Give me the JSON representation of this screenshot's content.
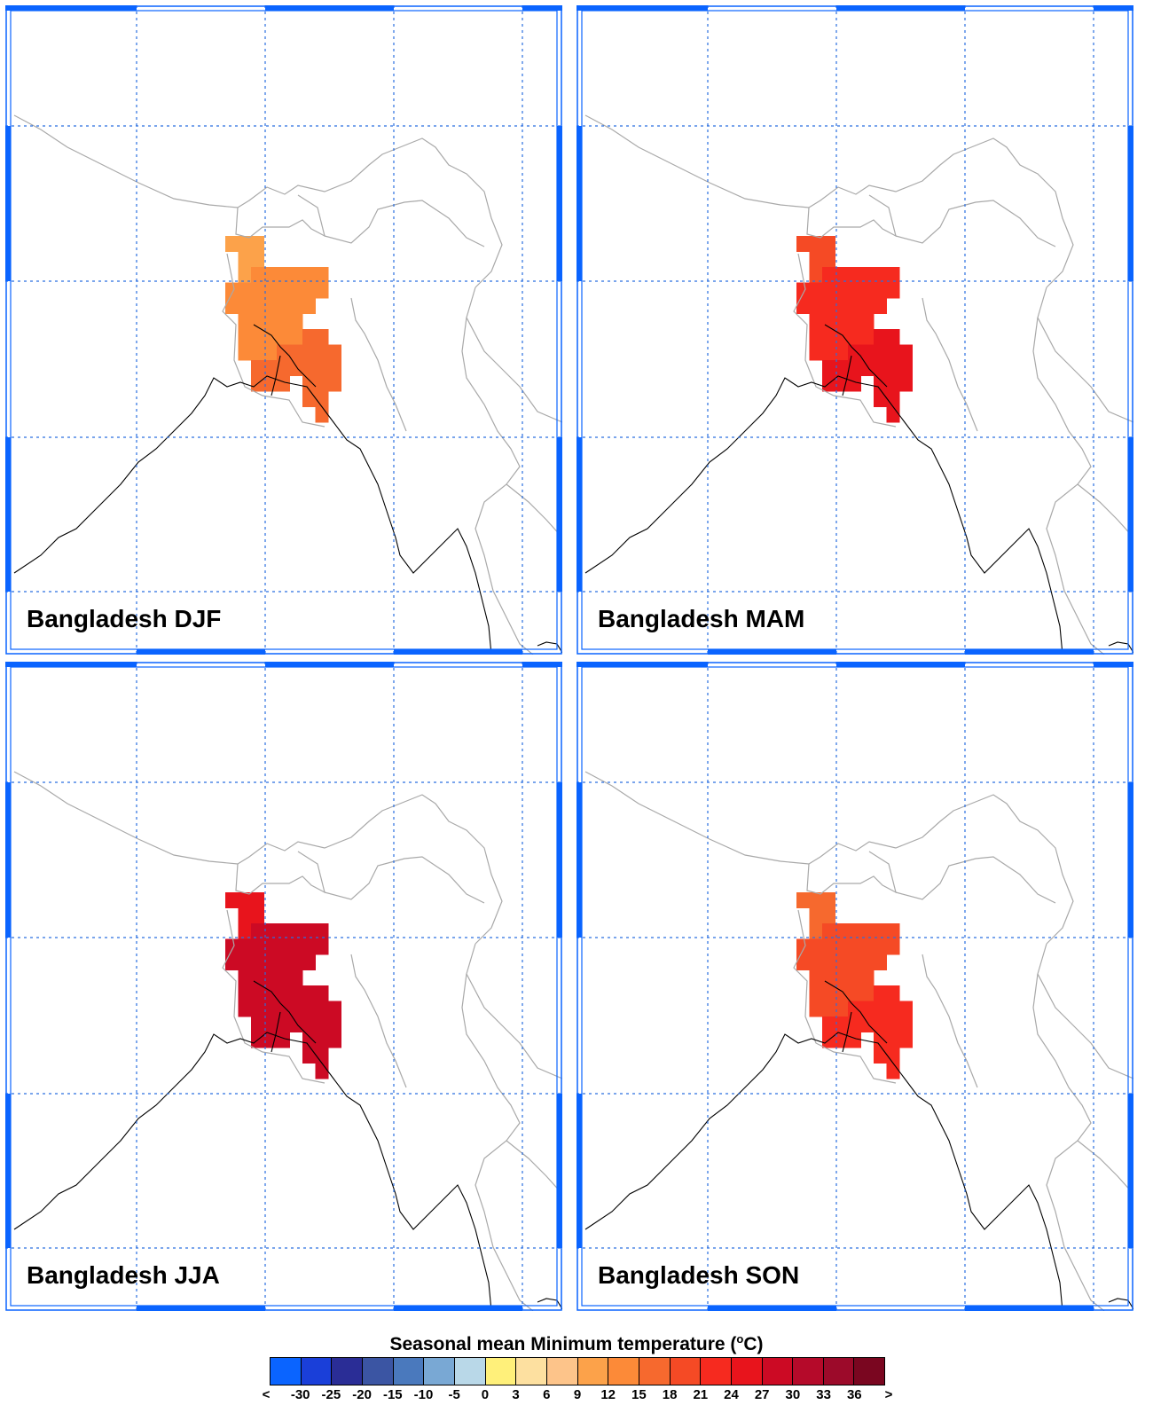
{
  "panels": [
    {
      "title": "Bangladesh DJF",
      "fill_values": [
        9,
        12,
        15
      ]
    },
    {
      "title": "Bangladesh MAM",
      "fill_values": [
        18,
        21,
        24
      ]
    },
    {
      "title": "Bangladesh JJA",
      "fill_values": [
        24,
        27
      ]
    },
    {
      "title": "Bangladesh SON",
      "fill_values": [
        15,
        18,
        21
      ]
    }
  ],
  "legend": {
    "title": "Seasonal mean Minimum temperature (",
    "unit_sup": "o",
    "unit_tail": "C)",
    "ticks": [
      "<",
      "-30",
      "-25",
      "-20",
      "-15",
      "-10",
      "-5",
      "0",
      "3",
      "6",
      "9",
      "12",
      "15",
      "18",
      "21",
      "24",
      "27",
      "30",
      "33",
      "36",
      ">"
    ],
    "colors": [
      "#0a64ff",
      "#1a3fd9",
      "#2a2d96",
      "#3b55a3",
      "#4a79bd",
      "#79a8d4",
      "#b9d8e8",
      "#fff07a",
      "#fde0a0",
      "#fdc48a",
      "#fca24a",
      "#fc8a38",
      "#f6692e",
      "#f54a25",
      "#f62a1f",
      "#e8141c",
      "#cc0a24",
      "#b50a2a",
      "#9c0a2a",
      "#7a0620"
    ]
  },
  "map_colors": {
    "land_border": "#a9a9a9",
    "coast": "#000000",
    "grid": "#2a6fe0",
    "frame": "#0a64ff"
  }
}
